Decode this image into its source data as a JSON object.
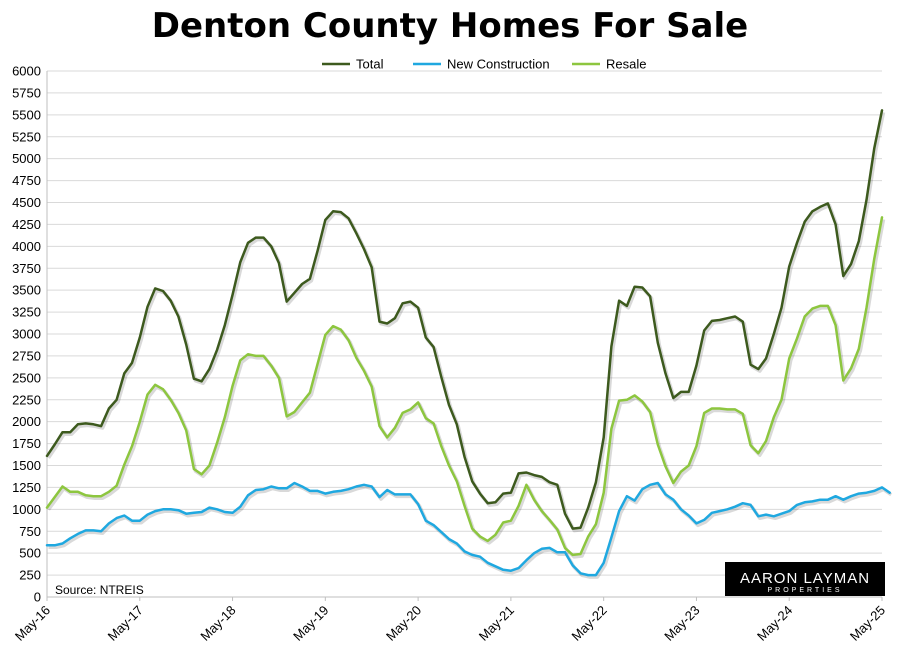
{
  "chart_data": {
    "type": "line",
    "title": "Denton County Homes For Sale",
    "xlabel": "",
    "ylabel": "",
    "ylim": [
      0,
      6000
    ],
    "yticks": [
      0,
      250,
      500,
      750,
      1000,
      1250,
      1500,
      1750,
      2000,
      2250,
      2500,
      2750,
      3000,
      3250,
      3500,
      3750,
      4000,
      4250,
      4500,
      4750,
      5000,
      5250,
      5500,
      5750,
      6000
    ],
    "x_tick_labels": [
      "May-16",
      "May-17",
      "May-18",
      "May-19",
      "May-20",
      "May-21",
      "May-22",
      "May-23",
      "May-24",
      "May-25"
    ],
    "x_start": "May-16",
    "x_end": "May-25",
    "grid": true,
    "legend_position": "top",
    "source_note": "Source: NTREIS",
    "series": [
      {
        "name": "Total",
        "color": "#3d5a1e",
        "values": [
          1610,
          1740,
          1880,
          1880,
          1970,
          1980,
          1970,
          1950,
          2150,
          2250,
          2550,
          2670,
          2960,
          3310,
          3520,
          3490,
          3380,
          3200,
          2880,
          2490,
          2460,
          2600,
          2820,
          3100,
          3450,
          3820,
          4040,
          4100,
          4100,
          4000,
          3810,
          3370,
          3470,
          3570,
          3630,
          3950,
          4300,
          4400,
          4390,
          4320,
          4150,
          3970,
          3760,
          3140,
          3120,
          3180,
          3350,
          3370,
          3300,
          2960,
          2850,
          2510,
          2190,
          1970,
          1600,
          1320,
          1180,
          1070,
          1080,
          1180,
          1190,
          1410,
          1420,
          1390,
          1370,
          1310,
          1280,
          950,
          780,
          790,
          1020,
          1310,
          1820,
          2860,
          3380,
          3320,
          3540,
          3530,
          3430,
          2900,
          2550,
          2270,
          2340,
          2340,
          2640,
          3040,
          3150,
          3160,
          3180,
          3200,
          3140,
          2650,
          2600,
          2720,
          3000,
          3300,
          3770,
          4040,
          4280,
          4400,
          4450,
          4490,
          4250,
          3660,
          3800,
          4060,
          4530,
          5120,
          5550
        ]
      },
      {
        "name": "New Construction",
        "color": "#1fa8e0",
        "values": [
          590,
          590,
          610,
          670,
          720,
          760,
          760,
          750,
          840,
          900,
          930,
          870,
          870,
          940,
          980,
          1000,
          1000,
          990,
          950,
          960,
          970,
          1020,
          1000,
          970,
          960,
          1030,
          1160,
          1220,
          1230,
          1260,
          1240,
          1240,
          1300,
          1260,
          1210,
          1210,
          1180,
          1200,
          1210,
          1230,
          1260,
          1280,
          1260,
          1140,
          1220,
          1170,
          1170,
          1170,
          1060,
          870,
          820,
          740,
          660,
          610,
          520,
          480,
          460,
          390,
          350,
          310,
          300,
          330,
          420,
          500,
          550,
          560,
          510,
          510,
          360,
          270,
          250,
          250,
          390,
          680,
          980,
          1150,
          1100,
          1230,
          1280,
          1300,
          1170,
          1110,
          1000,
          930,
          840,
          880,
          960,
          980,
          1000,
          1030,
          1070,
          1050,
          920,
          940,
          920,
          950,
          980,
          1050,
          1080,
          1090,
          1110,
          1110,
          1150,
          1110,
          1150,
          1180,
          1190,
          1210,
          1250,
          1190
        ]
      },
      {
        "name": "Resale",
        "color": "#8dc63f",
        "values": [
          1020,
          1140,
          1260,
          1200,
          1200,
          1160,
          1150,
          1150,
          1200,
          1270,
          1510,
          1720,
          2000,
          2310,
          2420,
          2370,
          2250,
          2100,
          1900,
          1460,
          1400,
          1500,
          1760,
          2050,
          2410,
          2700,
          2770,
          2750,
          2750,
          2640,
          2500,
          2060,
          2110,
          2220,
          2330,
          2660,
          2990,
          3090,
          3050,
          2930,
          2730,
          2580,
          2400,
          1950,
          1820,
          1930,
          2100,
          2140,
          2220,
          2040,
          1980,
          1720,
          1500,
          1320,
          1040,
          780,
          690,
          640,
          710,
          850,
          870,
          1040,
          1280,
          1110,
          980,
          880,
          770,
          560,
          480,
          490,
          690,
          830,
          1190,
          1920,
          2240,
          2250,
          2300,
          2230,
          2110,
          1740,
          1490,
          1300,
          1430,
          1500,
          1720,
          2100,
          2150,
          2150,
          2140,
          2140,
          2090,
          1730,
          1640,
          1780,
          2050,
          2250,
          2720,
          2950,
          3200,
          3290,
          3320,
          3320,
          3100,
          2470,
          2610,
          2830,
          3300,
          3860,
          4330
        ]
      }
    ]
  }
}
